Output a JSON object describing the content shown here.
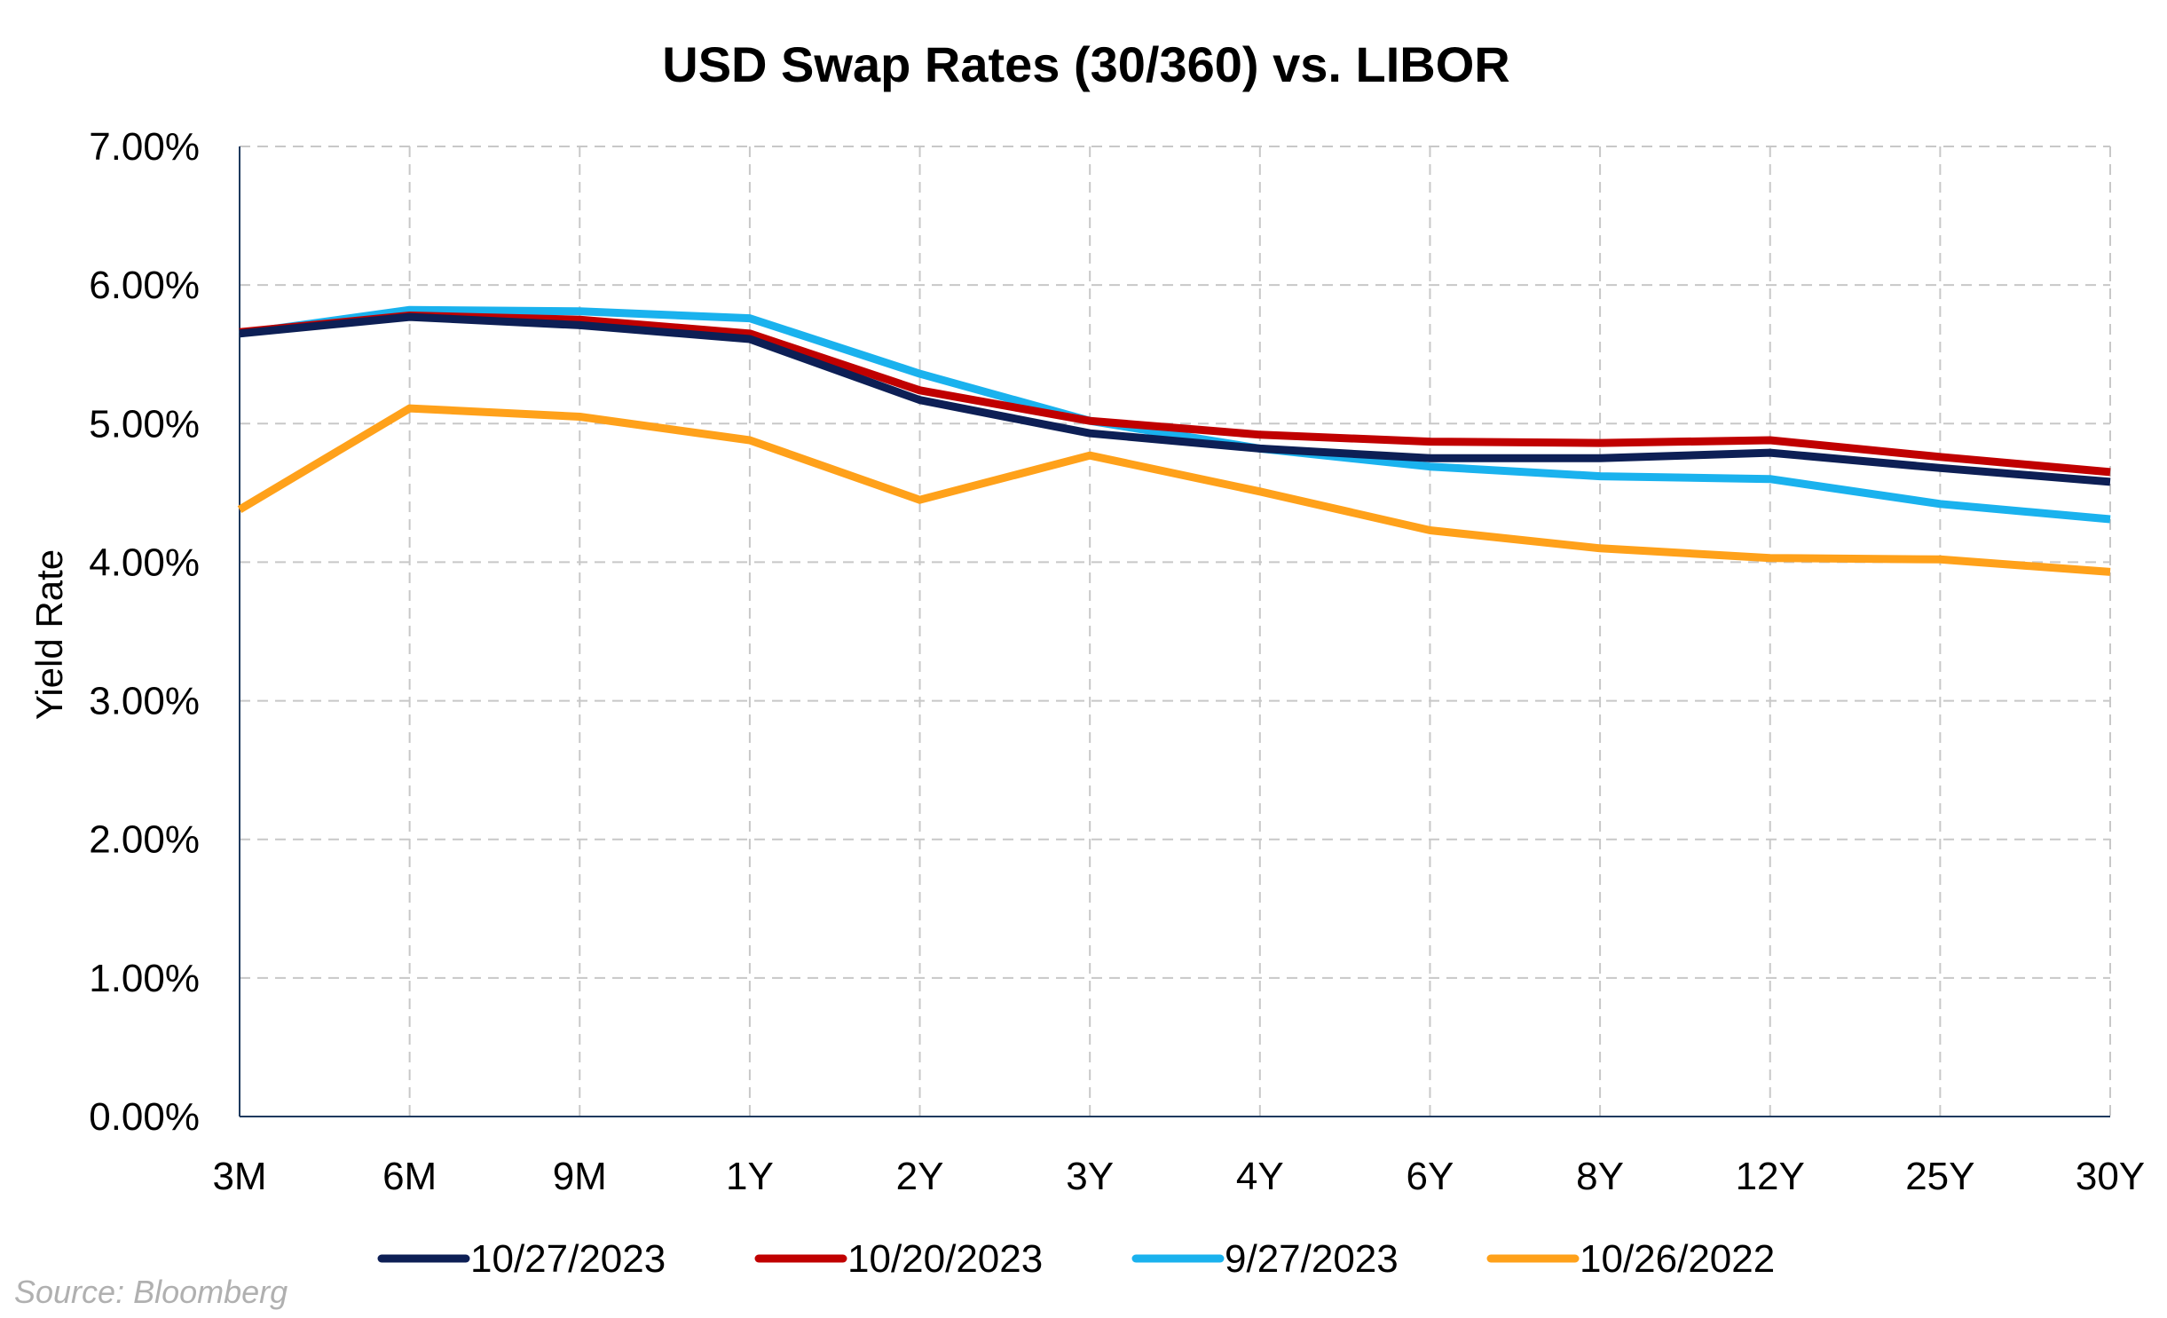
{
  "chart_data": {
    "type": "line",
    "title": "USD Swap Rates (30/360) vs. LIBOR",
    "xlabel": "",
    "ylabel": "Yield Rate",
    "categories": [
      "3M",
      "6M",
      "9M",
      "1Y",
      "2Y",
      "3Y",
      "4Y",
      "6Y",
      "8Y",
      "12Y",
      "25Y",
      "30Y"
    ],
    "ylim": [
      0,
      7
    ],
    "yticks": [
      "0.00%",
      "1.00%",
      "2.00%",
      "3.00%",
      "4.00%",
      "5.00%",
      "6.00%",
      "7.00%"
    ],
    "grid": true,
    "legend_position": "bottom",
    "series": [
      {
        "name": "10/27/2023",
        "color": "#0d1f55",
        "values": [
          5.65,
          5.77,
          5.71,
          5.61,
          5.17,
          4.93,
          4.82,
          4.75,
          4.75,
          4.79,
          4.68,
          4.58
        ]
      },
      {
        "name": "10/20/2023",
        "color": "#c00000",
        "values": [
          5.66,
          5.78,
          5.75,
          5.65,
          5.24,
          5.02,
          4.92,
          4.87,
          4.86,
          4.88,
          4.76,
          4.65
        ]
      },
      {
        "name": "9/27/2023",
        "color": "#1ab2ee",
        "values": [
          5.65,
          5.82,
          5.81,
          5.76,
          5.36,
          5.02,
          4.82,
          4.69,
          4.62,
          4.6,
          4.42,
          4.31
        ]
      },
      {
        "name": "10/26/2022",
        "color": "#ffa11a",
        "values": [
          4.38,
          5.11,
          5.05,
          4.88,
          4.45,
          4.77,
          4.51,
          4.23,
          4.1,
          4.03,
          4.02,
          3.93
        ]
      }
    ]
  },
  "footer": {
    "source": "Source: Bloomberg"
  }
}
